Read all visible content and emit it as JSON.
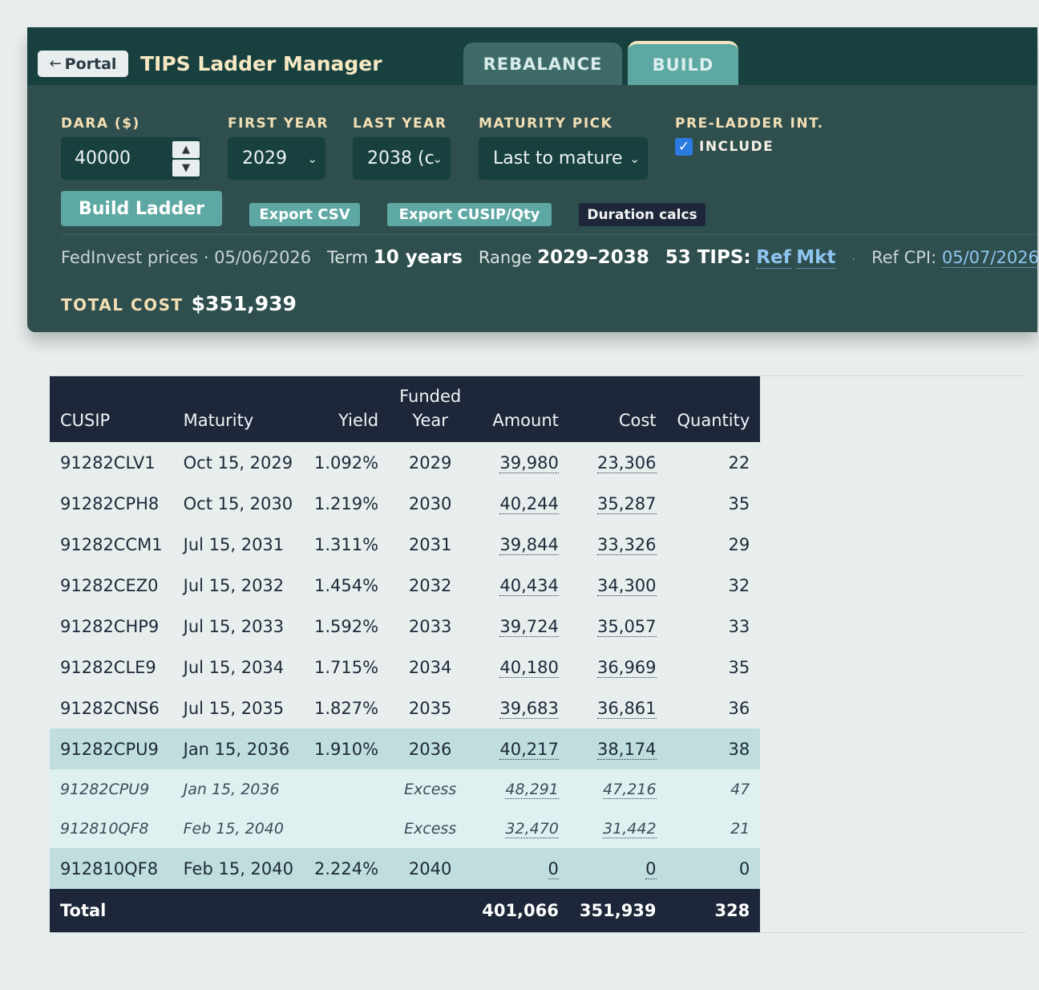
{
  "header": {
    "portal_label": "Portal",
    "app_title": "TIPS Ladder Manager",
    "tabs": [
      {
        "label": "REBALANCE",
        "active": false
      },
      {
        "label": "BUILD",
        "active": true
      }
    ]
  },
  "form": {
    "dara": {
      "label": "DARA ($)",
      "value": "40000"
    },
    "first_year": {
      "label": "FIRST YEAR",
      "value": "2029"
    },
    "last_year": {
      "label": "LAST YEAR",
      "value": "2038 (c"
    },
    "maturity_pick": {
      "label": "MATURITY PICK",
      "value": "Last to mature"
    },
    "pre_ladder": {
      "label": "PRE-LADDER INT.",
      "checkbox_label": "INCLUDE",
      "checked": true
    }
  },
  "actions": {
    "build": "Build Ladder",
    "export_csv": "Export CSV",
    "export_cusip": "Export CUSIP/Qty",
    "duration": "Duration calcs"
  },
  "info": {
    "prices": "FedInvest prices · 05/06/2026",
    "term_label": "Term",
    "term_value": "10 years",
    "range_label": "Range",
    "range_value": "2029–2038",
    "tips_count": "53 TIPS:",
    "ref_link": "Ref",
    "mkt_link": "Mkt",
    "sep": "·",
    "ref_cpi_label": "Ref CPI:",
    "ref_cpi_value": "05/07/2026"
  },
  "total_cost": {
    "label": "TOTAL COST",
    "value": "$351,939"
  },
  "colors": {
    "panel": "#2f4e4e",
    "header": "#17403e",
    "accent": "#5ea8a4",
    "label": "#f3dfb4",
    "table_head": "#1d2739"
  },
  "table": {
    "headers": {
      "cusip": "CUSIP",
      "maturity": "Maturity",
      "yield": "Yield",
      "funded_year_1": "Funded",
      "funded_year_2": "Year",
      "amount": "Amount",
      "cost": "Cost",
      "quantity": "Quantity"
    },
    "rows": [
      {
        "type": "normal",
        "cusip": "91282CLV1",
        "maturity": "Oct 15, 2029",
        "yield": "1.092%",
        "year": "2029",
        "amount": "39,980",
        "cost": "23,306",
        "qty": "22"
      },
      {
        "type": "normal",
        "cusip": "91282CPH8",
        "maturity": "Oct 15, 2030",
        "yield": "1.219%",
        "year": "2030",
        "amount": "40,244",
        "cost": "35,287",
        "qty": "35"
      },
      {
        "type": "normal",
        "cusip": "91282CCM1",
        "maturity": "Jul 15, 2031",
        "yield": "1.311%",
        "year": "2031",
        "amount": "39,844",
        "cost": "33,326",
        "qty": "29"
      },
      {
        "type": "normal",
        "cusip": "91282CEZ0",
        "maturity": "Jul 15, 2032",
        "yield": "1.454%",
        "year": "2032",
        "amount": "40,434",
        "cost": "34,300",
        "qty": "32"
      },
      {
        "type": "normal",
        "cusip": "91282CHP9",
        "maturity": "Jul 15, 2033",
        "yield": "1.592%",
        "year": "2033",
        "amount": "39,724",
        "cost": "35,057",
        "qty": "33"
      },
      {
        "type": "normal",
        "cusip": "91282CLE9",
        "maturity": "Jul 15, 2034",
        "yield": "1.715%",
        "year": "2034",
        "amount": "40,180",
        "cost": "36,969",
        "qty": "35"
      },
      {
        "type": "normal",
        "cusip": "91282CNS6",
        "maturity": "Jul 15, 2035",
        "yield": "1.827%",
        "year": "2035",
        "amount": "39,683",
        "cost": "36,861",
        "qty": "36"
      },
      {
        "type": "hl",
        "cusip": "91282CPU9",
        "maturity": "Jan 15, 2036",
        "yield": "1.910%",
        "year": "2036",
        "amount": "40,217",
        "cost": "38,174",
        "qty": "38"
      },
      {
        "type": "ex",
        "cusip": "91282CPU9",
        "maturity": "Jan 15, 2036",
        "yield": "",
        "year": "Excess",
        "amount": "48,291",
        "cost": "47,216",
        "qty": "47"
      },
      {
        "type": "ex",
        "cusip": "912810QF8",
        "maturity": "Feb 15, 2040",
        "yield": "",
        "year": "Excess",
        "amount": "32,470",
        "cost": "31,442",
        "qty": "21"
      },
      {
        "type": "hl",
        "cusip": "912810QF8",
        "maturity": "Feb 15, 2040",
        "yield": "2.224%",
        "year": "2040",
        "amount": "0",
        "cost": "0",
        "qty": "0"
      }
    ],
    "total": {
      "label": "Total",
      "amount": "401,066",
      "cost": "351,939",
      "qty": "328"
    }
  }
}
